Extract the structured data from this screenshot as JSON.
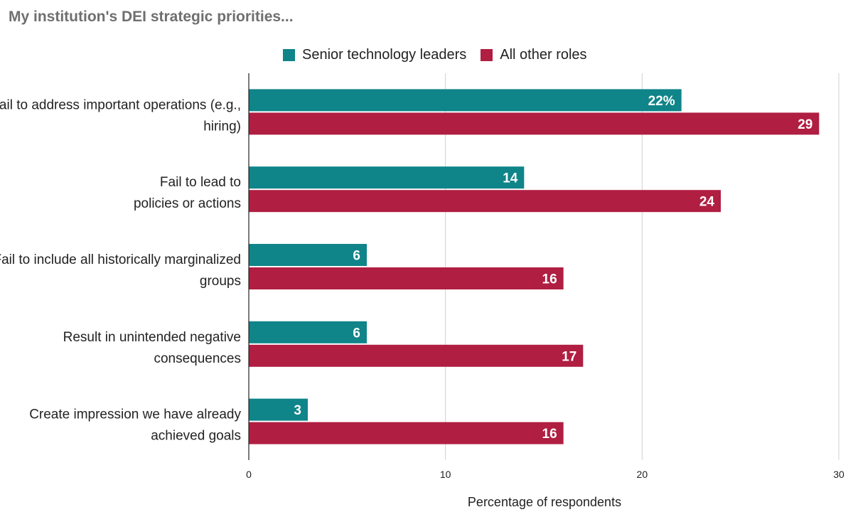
{
  "title": "My institution's DEI strategic priorities...",
  "colors": {
    "senior": "#0f8489",
    "other": "#b01e42",
    "grid": "#d0d0d0",
    "axis": "#222222"
  },
  "legend": [
    {
      "name": "Senior technology leaders",
      "color": "#0f8489"
    },
    {
      "name": "All other roles",
      "color": "#b01e42"
    }
  ],
  "chart_data": {
    "type": "bar",
    "orientation": "horizontal",
    "title": "My institution's DEI strategic priorities...",
    "xlabel": "Percentage of respondents",
    "ylabel": "",
    "xlim": [
      0,
      30
    ],
    "xticks": [
      0,
      10,
      20,
      30
    ],
    "grid": true,
    "legend_position": "top",
    "categories": [
      [
        "Fail to address important operations (e.g.,",
        "hiring)"
      ],
      [
        "Fail to lead to",
        "policies or actions"
      ],
      [
        "Fail to include all historically marginalized",
        "groups"
      ],
      [
        "Result in unintended negative",
        "consequences"
      ],
      [
        "Create impression we have already",
        "achieved goals"
      ]
    ],
    "series": [
      {
        "name": "Senior technology leaders",
        "color": "#0f8489",
        "values": [
          22,
          14,
          6,
          6,
          3
        ],
        "labels": [
          "22%",
          "14",
          "6",
          "6",
          "3"
        ]
      },
      {
        "name": "All other roles",
        "color": "#b01e42",
        "values": [
          29,
          24,
          16,
          17,
          16
        ],
        "labels": [
          "29",
          "24",
          "16",
          "17",
          "16"
        ]
      }
    ]
  }
}
